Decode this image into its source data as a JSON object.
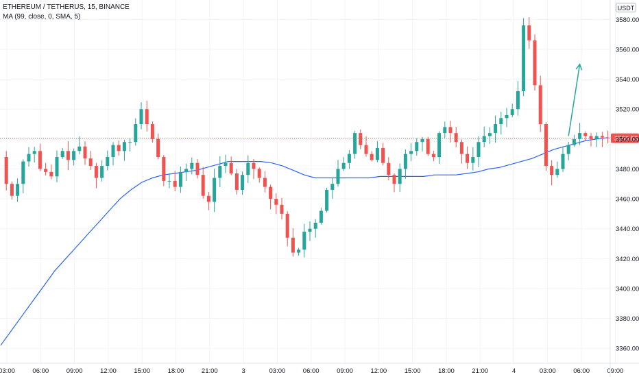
{
  "legend": {
    "symbol": "ETHEREUM / TETHERUS, 15, BINANCE",
    "indicator": "MA (99, close, 0, SMA, 5)"
  },
  "unit_button": "USDT",
  "colors": {
    "up": "#26a69a",
    "down": "#ef5350",
    "ma": "#2962ff",
    "grid": "#f0f3fa",
    "axis_text": "#131722",
    "last_price_line": "#ef5350",
    "arrow": "#26a69a"
  },
  "chart_data": {
    "type": "candlestick",
    "x_ticks": [
      "03:00",
      "06:00",
      "09:00",
      "12:00",
      "15:00",
      "18:00",
      "21:00",
      "3",
      "03:00",
      "06:00",
      "09:00",
      "12:00",
      "15:00",
      "18:00",
      "21:00",
      "4",
      "03:00",
      "06:00",
      "09:00"
    ],
    "y_ticks": [
      3360,
      3380,
      3400,
      3420,
      3440,
      3460,
      3480,
      3500,
      3520,
      3540,
      3560,
      3580
    ],
    "ylim": [
      3350,
      3593
    ],
    "last_price": 3500.53,
    "last_price_label": "3500.53",
    "close_path": [
      3488,
      3470,
      3462,
      3470,
      3485,
      3490,
      3492,
      3480,
      3478,
      3475,
      3488,
      3492,
      3486,
      3492,
      3495,
      3487,
      3482,
      3474,
      3482,
      3488,
      3496,
      3492,
      3498,
      3498,
      3510,
      3520,
      3510,
      3500,
      3488,
      3472,
      3472,
      3468,
      3478,
      3480,
      3484,
      3476,
      3462,
      3458,
      3474,
      3482,
      3484,
      3477,
      3466,
      3476,
      3484,
      3480,
      3474,
      3468,
      3460,
      3456,
      3450,
      3434,
      3424,
      3426,
      3438,
      3440,
      3444,
      3452,
      3466,
      3470,
      3480,
      3484,
      3490,
      3504,
      3496,
      3490,
      3486,
      3494,
      3484,
      3476,
      3470,
      3480,
      3490,
      3492,
      3498,
      3500,
      3490,
      3488,
      3504,
      3508,
      3504,
      3498,
      3490,
      3484,
      3488,
      3498,
      3502,
      3504,
      3510,
      3514,
      3516,
      3520,
      3532,
      3576,
      3566,
      3536,
      3510,
      3482,
      3476,
      3480,
      3490,
      3496,
      3500,
      3504,
      3502,
      3500,
      3502,
      3501,
      3500.53
    ],
    "ma": {
      "name": "MA (99, close, 0, SMA, 5)",
      "values": [
        3362,
        3372,
        3382,
        3392,
        3402,
        3412,
        3420,
        3428,
        3436,
        3444,
        3452,
        3460,
        3466,
        3471,
        3474,
        3476,
        3477,
        3478,
        3479,
        3481,
        3483,
        3485,
        3485,
        3485,
        3485,
        3484,
        3482,
        3479,
        3476,
        3474,
        3474,
        3474,
        3474,
        3474,
        3474,
        3475,
        3475,
        3475,
        3475,
        3475,
        3476,
        3476,
        3476,
        3477,
        3478,
        3480,
        3481,
        3483,
        3485,
        3487,
        3490,
        3493,
        3495,
        3497,
        3499,
        3500,
        3501
      ]
    },
    "annotation_arrow": {
      "from": [
        101,
        3502
      ],
      "to": [
        103,
        3550
      ]
    }
  }
}
